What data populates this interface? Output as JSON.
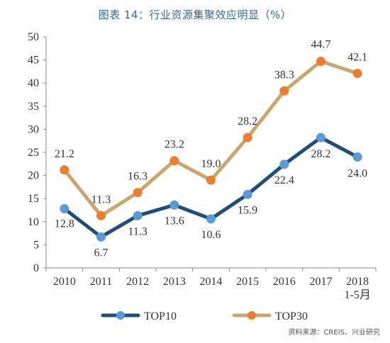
{
  "title": "图表 14：行业资源集聚效应明显（%）",
  "source": "资料来源：CREIS、兴业研究",
  "chart_data": {
    "type": "line",
    "title": "图表 14：行业资源集聚效应明显（%）",
    "categories": [
      "2010",
      "2011",
      "2012",
      "2013",
      "2014",
      "2015",
      "2016",
      "2017",
      "2018\n1-5月"
    ],
    "category_lines": [
      [
        "2010"
      ],
      [
        "2011"
      ],
      [
        "2012"
      ],
      [
        "2013"
      ],
      [
        "2014"
      ],
      [
        "2015"
      ],
      [
        "2016"
      ],
      [
        "2017"
      ],
      [
        "2018",
        "1-5月"
      ]
    ],
    "ylim": [
      0,
      50
    ],
    "yticks": [
      0,
      5,
      10,
      15,
      20,
      25,
      30,
      35,
      40,
      45,
      50
    ],
    "grid": false,
    "legend_position": "bottom",
    "series": [
      {
        "name": "TOP10",
        "values": [
          12.8,
          6.7,
          11.3,
          13.6,
          10.6,
          15.9,
          22.4,
          28.2,
          24.0
        ],
        "labels": [
          "12.8",
          "6.7",
          "11.3",
          "13.6",
          "10.6",
          "15.9",
          "22.4",
          "28.2",
          "24.0"
        ],
        "line_color": "#1f4e79",
        "marker_color": "#5b9bd5"
      },
      {
        "name": "TOP30",
        "values": [
          21.2,
          11.3,
          16.3,
          23.2,
          19.0,
          28.2,
          38.3,
          44.7,
          42.1
        ],
        "labels": [
          "21.2",
          "11.3",
          "16.3",
          "23.2",
          "19.0",
          "28.2",
          "38.3",
          "44.7",
          "42.1"
        ],
        "line_color": "#c9a66b",
        "marker_color": "#ed7d31"
      }
    ]
  }
}
